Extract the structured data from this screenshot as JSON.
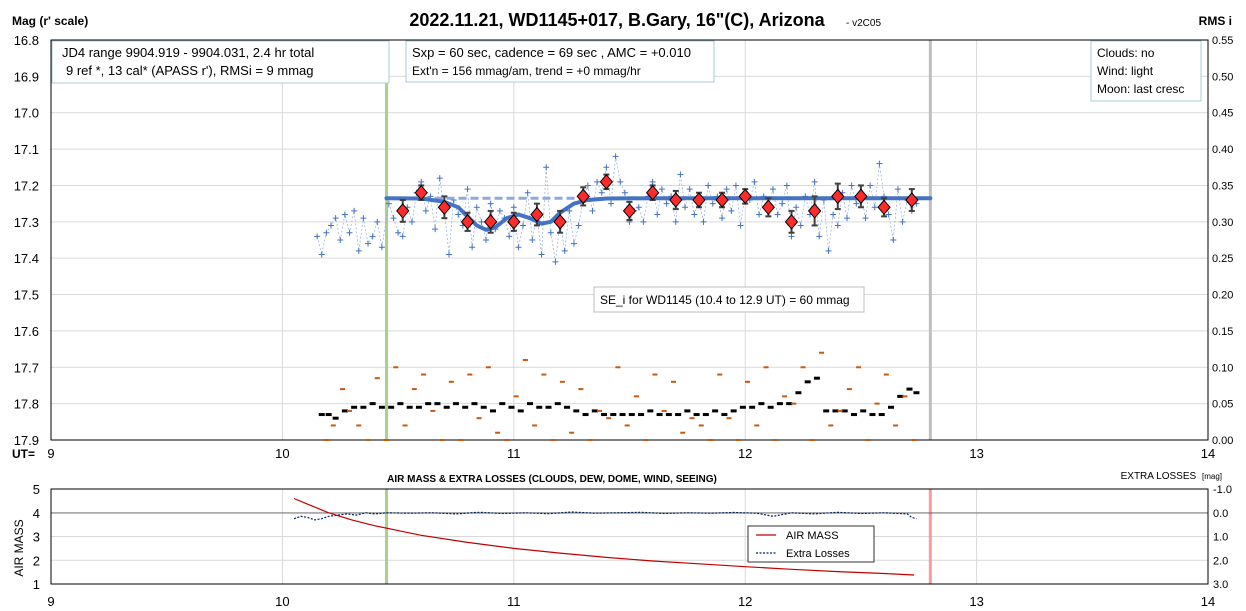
{
  "chart_data": [
    {
      "type": "scatter",
      "title": "2022.11.21, WD1145+017, B.Gary, 16\"(C), Arizona",
      "version_label": "- v2C05",
      "ylabel_left": "Mag (r' scale)",
      "ylabel_right": "RMS i",
      "x_label": "UT=",
      "xlim": [
        9,
        14
      ],
      "ylim_left": [
        16.8,
        17.9
      ],
      "ylim_right": [
        0.0,
        0.55
      ],
      "x_ticks": [
        "9",
        "10",
        "11",
        "12",
        "13",
        "14"
      ],
      "y_ticks_left": [
        "16.8",
        "16.9",
        "17.0",
        "17.1",
        "17.2",
        "17.3",
        "17.4",
        "17.5",
        "17.6",
        "17.7",
        "17.8",
        "17.9"
      ],
      "y_ticks_right": [
        "0.55",
        "0.50",
        "0.45",
        "0.40",
        "0.35",
        "0.30",
        "0.25",
        "0.20",
        "0.15",
        "0.10",
        "0.05",
        "0.00"
      ],
      "vertical_markers": [
        {
          "x": 10.45,
          "color": "#a9d18e"
        },
        {
          "x": 12.8,
          "color": "#bfbfbf"
        }
      ],
      "info_boxes": {
        "left": {
          "line1": "JD4 range 9904.919 - 9904.031, 2.4 hr total",
          "line2": "9 ref *, 13 cal*  (APASS r'), RMSi = 9 mmag"
        },
        "middle": {
          "line1": "Sxp = 60 sec, cadence = 69 sec , AMC = +0.010",
          "line2": "Ext'n = 156 mmag/am, trend = +0 mmag/hr"
        },
        "right": {
          "line1": "Clouds: no",
          "line2": "Wind:  light",
          "line3": "Moon:  last cresc"
        },
        "se": {
          "line1": "SE_i for WD1145 (10.4 to 12.9 UT) = 60 mmag"
        }
      },
      "series": [
        {
          "label": "individual",
          "color": "#4472c4",
          "x": [
            10.15,
            10.17,
            10.19,
            10.21,
            10.23,
            10.25,
            10.27,
            10.29,
            10.31,
            10.33,
            10.35,
            10.37,
            10.39,
            10.41,
            10.43,
            10.46,
            10.48,
            10.5,
            10.52,
            10.54,
            10.56,
            10.58,
            10.6,
            10.62,
            10.64,
            10.66,
            10.68,
            10.7,
            10.72,
            10.74,
            10.76,
            10.78,
            10.8,
            10.82,
            10.84,
            10.86,
            10.88,
            10.9,
            10.92,
            10.94,
            10.96,
            10.98,
            11.0,
            11.02,
            11.04,
            11.06,
            11.08,
            11.1,
            11.12,
            11.14,
            11.16,
            11.18,
            11.2,
            11.22,
            11.24,
            11.26,
            11.28,
            11.3,
            11.32,
            11.34,
            11.36,
            11.38,
            11.4,
            11.42,
            11.44,
            11.46,
            11.48,
            11.5,
            11.52,
            11.54,
            11.56,
            11.58,
            11.6,
            11.62,
            11.64,
            11.66,
            11.68,
            11.7,
            11.72,
            11.74,
            11.76,
            11.78,
            11.8,
            11.82,
            11.84,
            11.86,
            11.88,
            11.9,
            11.92,
            11.94,
            11.96,
            11.98,
            12.0,
            12.02,
            12.04,
            12.06,
            12.08,
            12.1,
            12.12,
            12.14,
            12.16,
            12.18,
            12.2,
            12.22,
            12.24,
            12.26,
            12.28,
            12.3,
            12.32,
            12.34,
            12.36,
            12.38,
            12.4,
            12.42,
            12.44,
            12.46,
            12.48,
            12.5,
            12.52,
            12.54,
            12.56,
            12.58,
            12.6,
            12.62,
            12.64,
            12.66,
            12.68,
            12.7,
            12.72,
            12.74
          ],
          "y": [
            17.34,
            17.39,
            17.33,
            17.31,
            17.29,
            17.35,
            17.28,
            17.33,
            17.27,
            17.38,
            17.29,
            17.36,
            17.34,
            17.3,
            17.37,
            17.25,
            17.29,
            17.33,
            17.34,
            17.26,
            17.3,
            17.22,
            17.19,
            17.27,
            17.23,
            17.32,
            17.18,
            17.27,
            17.39,
            17.24,
            17.28,
            17.31,
            17.21,
            17.37,
            17.26,
            17.3,
            17.35,
            17.25,
            17.32,
            17.27,
            17.29,
            17.34,
            17.26,
            17.37,
            17.31,
            17.22,
            17.35,
            17.28,
            17.39,
            17.15,
            17.33,
            17.41,
            17.3,
            17.38,
            17.27,
            17.36,
            17.31,
            17.24,
            17.2,
            17.27,
            17.19,
            17.22,
            17.15,
            17.25,
            17.12,
            17.19,
            17.22,
            17.3,
            17.27,
            17.26,
            17.3,
            17.23,
            17.19,
            17.28,
            17.21,
            17.25,
            17.23,
            17.3,
            17.17,
            17.26,
            17.21,
            17.28,
            17.24,
            17.3,
            17.2,
            17.25,
            17.23,
            17.29,
            17.21,
            17.27,
            17.2,
            17.31,
            17.22,
            17.24,
            17.19,
            17.28,
            17.23,
            17.26,
            17.21,
            17.28,
            17.25,
            17.2,
            17.34,
            17.26,
            17.31,
            17.23,
            17.28,
            17.19,
            17.34,
            17.24,
            17.38,
            17.28,
            17.31,
            17.22,
            17.29,
            17.2,
            17.25,
            17.22,
            17.29,
            17.2,
            17.26,
            17.14,
            17.23,
            17.28,
            17.35,
            17.21,
            17.3,
            17.24,
            17.27,
            17.25
          ]
        },
        {
          "label": "binned",
          "color": "#c00000",
          "x": [
            10.52,
            10.6,
            10.7,
            10.8,
            10.9,
            11.0,
            11.1,
            11.2,
            11.3,
            11.4,
            11.5,
            11.6,
            11.7,
            11.8,
            11.9,
            12.0,
            12.1,
            12.2,
            12.3,
            12.4,
            12.5,
            12.6,
            12.72
          ],
          "y": [
            17.27,
            17.22,
            17.26,
            17.3,
            17.3,
            17.3,
            17.28,
            17.3,
            17.23,
            17.19,
            17.27,
            17.22,
            17.24,
            17.24,
            17.24,
            17.23,
            17.26,
            17.3,
            17.27,
            17.23,
            17.23,
            17.26,
            17.24
          ],
          "err": [
            0.03,
            0.02,
            0.03,
            0.025,
            0.03,
            0.025,
            0.03,
            0.03,
            0.025,
            0.02,
            0.025,
            0.02,
            0.025,
            0.02,
            0.02,
            0.02,
            0.025,
            0.03,
            0.04,
            0.035,
            0.03,
            0.025,
            0.03
          ]
        },
        {
          "label": "model_solid",
          "color": "#4472c4",
          "x": [
            10.45,
            10.6,
            10.7,
            10.76,
            10.8,
            10.84,
            10.88,
            10.92,
            10.97,
            11.02,
            11.07,
            11.12,
            11.16,
            11.2,
            11.26,
            11.32,
            11.4,
            11.6,
            12.0,
            12.4,
            12.8
          ],
          "y": [
            17.235,
            17.236,
            17.245,
            17.26,
            17.285,
            17.31,
            17.322,
            17.315,
            17.29,
            17.28,
            17.29,
            17.305,
            17.3,
            17.275,
            17.25,
            17.24,
            17.236,
            17.235,
            17.235,
            17.235,
            17.235
          ]
        },
        {
          "label": "model_dashed",
          "color": "#8ea9db",
          "x": [
            10.45,
            10.9,
            11.3
          ],
          "y": [
            17.235,
            17.235,
            17.235
          ]
        },
        {
          "label": "rms_black",
          "color": "#000000",
          "x": [
            10.17,
            10.2,
            10.23,
            10.27,
            10.31,
            10.35,
            10.39,
            10.43,
            10.47,
            10.51,
            10.55,
            10.59,
            10.63,
            10.67,
            10.71,
            10.75,
            10.79,
            10.83,
            10.87,
            10.91,
            10.95,
            10.99,
            11.03,
            11.07,
            11.11,
            11.15,
            11.19,
            11.23,
            11.27,
            11.31,
            11.35,
            11.39,
            11.43,
            11.47,
            11.51,
            11.55,
            11.59,
            11.63,
            11.67,
            11.71,
            11.75,
            11.79,
            11.83,
            11.87,
            11.91,
            11.95,
            11.99,
            12.03,
            12.07,
            12.11,
            12.15,
            12.19,
            12.23,
            12.27,
            12.31,
            12.35,
            12.39,
            12.43,
            12.47,
            12.51,
            12.55,
            12.59,
            12.63,
            12.67,
            12.71,
            12.74
          ],
          "y": [
            0.035,
            0.035,
            0.03,
            0.04,
            0.045,
            0.045,
            0.05,
            0.045,
            0.045,
            0.05,
            0.045,
            0.045,
            0.05,
            0.05,
            0.045,
            0.05,
            0.045,
            0.05,
            0.045,
            0.04,
            0.05,
            0.045,
            0.04,
            0.05,
            0.045,
            0.045,
            0.05,
            0.045,
            0.04,
            0.035,
            0.04,
            0.035,
            0.035,
            0.035,
            0.035,
            0.035,
            0.04,
            0.035,
            0.035,
            0.035,
            0.04,
            0.035,
            0.035,
            0.04,
            0.035,
            0.04,
            0.045,
            0.045,
            0.05,
            0.045,
            0.05,
            0.05,
            0.065,
            0.08,
            0.085,
            0.04,
            0.04,
            0.04,
            0.035,
            0.04,
            0.035,
            0.035,
            0.045,
            0.06,
            0.07,
            0.065
          ]
        },
        {
          "label": "rms_orange",
          "color": "#c55a11",
          "x": [
            10.19,
            10.22,
            10.26,
            10.29,
            10.33,
            10.37,
            10.41,
            10.45,
            10.49,
            10.53,
            10.57,
            10.61,
            10.65,
            10.69,
            10.73,
            10.77,
            10.81,
            10.85,
            10.89,
            10.93,
            10.97,
            11.01,
            11.05,
            11.09,
            11.13,
            11.17,
            11.21,
            11.25,
            11.29,
            11.33,
            11.37,
            11.41,
            11.45,
            11.49,
            11.53,
            11.57,
            11.61,
            11.65,
            11.69,
            11.73,
            11.77,
            11.81,
            11.85,
            11.89,
            11.93,
            11.97,
            12.01,
            12.05,
            12.09,
            12.13,
            12.17,
            12.21,
            12.25,
            12.29,
            12.33,
            12.37,
            12.41,
            12.45,
            12.49,
            12.53,
            12.57,
            12.61,
            12.65,
            12.69,
            12.73
          ],
          "y": [
            0.0,
            0.02,
            0.07,
            0.04,
            0.02,
            0.0,
            0.085,
            0.0,
            0.1,
            0.02,
            0.07,
            0.09,
            0.04,
            0.0,
            0.08,
            0.0,
            0.09,
            0.03,
            0.1,
            0.01,
            0.0,
            0.06,
            0.11,
            0.02,
            0.09,
            0.0,
            0.08,
            0.01,
            0.07,
            0.0,
            0.04,
            0.03,
            0.1,
            0.02,
            0.06,
            0.0,
            0.09,
            0.04,
            0.08,
            0.01,
            0.03,
            0.02,
            0.0,
            0.09,
            0.03,
            0.0,
            0.08,
            0.02,
            0.1,
            0.0,
            0.06,
            0.05,
            0.1,
            0.0,
            0.12,
            0.02,
            0.04,
            0.07,
            0.1,
            0.0,
            0.05,
            0.09,
            0.02,
            0.06,
            0.0
          ]
        }
      ]
    },
    {
      "type": "line",
      "title": "AIR MASS & EXTRA LOSSES (CLOUDS, DEW, DOME, WIND, SEEING)",
      "ylabel_left": "AIR MASS",
      "ylabel_right": "EXTRA LOSSES [mag]",
      "ylabel_right_prefix": "EXTRA LOSSES",
      "ylabel_right_unit": "[mag]",
      "xlim": [
        9,
        14
      ],
      "ylim_left": [
        1,
        5
      ],
      "ylim_right": [
        3.0,
        -1.0
      ],
      "x_ticks": [
        "9",
        "10",
        "11",
        "12",
        "13",
        "14"
      ],
      "y_ticks_left": [
        "5",
        "4",
        "3",
        "2",
        "1"
      ],
      "y_ticks_right": [
        "-1.0",
        "0.0",
        "1.0",
        "2.0",
        "3.0"
      ],
      "vertical_markers": [
        {
          "x": 10.45,
          "color": "#a9d18e"
        },
        {
          "x": 12.8,
          "color": "#ff9999"
        }
      ],
      "legend": {
        "position": "bottom-right",
        "items": [
          "AIR MASS",
          "Extra Losses"
        ]
      },
      "series": [
        {
          "name": "AIR MASS",
          "color": "#c00000",
          "x": [
            10.05,
            10.1,
            10.2,
            10.3,
            10.4,
            10.5,
            10.6,
            10.8,
            11.0,
            11.2,
            11.4,
            11.6,
            11.8,
            12.0,
            12.2,
            12.4,
            12.6,
            12.73
          ],
          "y": [
            4.6,
            4.4,
            4.0,
            3.7,
            3.45,
            3.25,
            3.05,
            2.75,
            2.5,
            2.3,
            2.12,
            1.97,
            1.85,
            1.73,
            1.62,
            1.52,
            1.44,
            1.38
          ]
        },
        {
          "name": "Extra Losses",
          "color": "#002060",
          "x": [
            10.05,
            10.08,
            10.11,
            10.14,
            10.17,
            10.2,
            10.24,
            10.28,
            10.32,
            10.36,
            10.4,
            10.45,
            10.55,
            10.65,
            10.75,
            10.85,
            10.95,
            11.05,
            11.15,
            11.25,
            11.35,
            11.45,
            11.55,
            11.65,
            11.75,
            11.85,
            11.95,
            12.05,
            12.12,
            12.2,
            12.3,
            12.4,
            12.5,
            12.6,
            12.7,
            12.72,
            12.74
          ],
          "y": [
            0.25,
            0.15,
            0.2,
            0.3,
            0.25,
            0.15,
            0.1,
            0.05,
            0.1,
            0.0,
            0.05,
            0.0,
            0.02,
            0.0,
            0.05,
            -0.02,
            0.03,
            0.0,
            0.04,
            -0.03,
            0.02,
            0.0,
            -0.02,
            0.03,
            0.0,
            0.02,
            -0.01,
            0.02,
            0.15,
            0.0,
            0.05,
            -0.02,
            0.03,
            0.0,
            0.05,
            0.2,
            0.25
          ]
        }
      ]
    }
  ]
}
